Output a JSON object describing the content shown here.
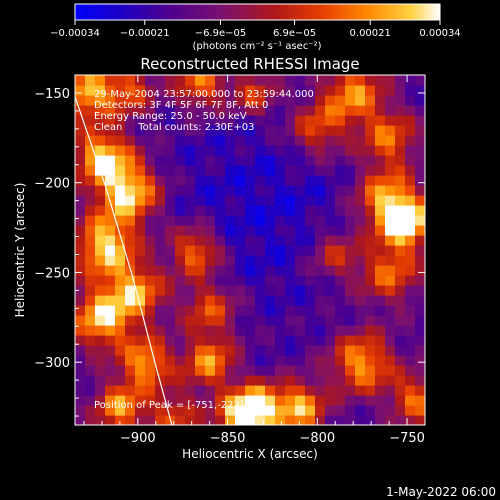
{
  "chart_data": {
    "type": "heatmap",
    "title": "Reconstructed RHESSI Image",
    "xlabel": "Heliocentric X (arcsec)",
    "ylabel": "Heliocentric Y (arcsec)",
    "xlim": [
      -935,
      -740
    ],
    "ylim": [
      -335,
      -140
    ],
    "x_ticks": [
      -900,
      -850,
      -800,
      -750
    ],
    "x_tick_labels": [
      "−900",
      "−850",
      "−800",
      "−750"
    ],
    "y_ticks": [
      -150,
      -200,
      -250,
      -300
    ],
    "y_tick_labels": [
      "−150",
      "−200",
      "−250",
      "−300"
    ],
    "colorbar": {
      "min": -0.00034,
      "max": 0.00034,
      "ticks": [
        -0.00034,
        -0.00021,
        -6.9e-05,
        6.9e-05,
        0.00021,
        0.00034
      ],
      "tick_labels": [
        "−0.00034",
        "−0.00021",
        "−6.9e−05",
        "6.9e−05",
        "0.00021",
        "0.00034"
      ],
      "units_label": "(photons cm⁻² s⁻¹ asec⁻²)",
      "colors": [
        "#0000ff",
        "#1a00c8",
        "#4a0090",
        "#7a1070",
        "#b01818",
        "#e84000",
        "#ff8800",
        "#ffd040",
        "#ffffff"
      ]
    },
    "annotations": [
      "29-May-2004 23:57:00.000 to 23:59:44.000",
      "Detectors: 3F 4F 5F 6F 7F 8F, Att 0",
      "Energy Range: 25.0 - 50.0 keV",
      "Clean     Total counts: 2.30E+03"
    ],
    "peak_label": "Position of Peak = [-751,-222]",
    "limb_curve": [
      [
        -935,
        -152
      ],
      [
        -918,
        -202
      ],
      [
        -903,
        -252
      ],
      [
        -890,
        -302
      ],
      [
        -881,
        -335
      ]
    ],
    "hotspots": [
      {
        "x": -751,
        "y": -222,
        "v": 1.0,
        "r": 10
      },
      {
        "x": -762,
        "y": -208,
        "v": 0.7,
        "r": 12
      },
      {
        "x": -760,
        "y": -250,
        "v": 0.6,
        "r": 12
      },
      {
        "x": -775,
        "y": -300,
        "v": 0.75,
        "r": 12
      },
      {
        "x": -780,
        "y": -150,
        "v": 0.7,
        "r": 12
      },
      {
        "x": -800,
        "y": -170,
        "v": 0.55,
        "r": 11
      },
      {
        "x": -810,
        "y": -325,
        "v": 0.8,
        "r": 10
      },
      {
        "x": -833,
        "y": -325,
        "v": 0.95,
        "r": 9
      },
      {
        "x": -845,
        "y": -330,
        "v": 0.7,
        "r": 9
      },
      {
        "x": -860,
        "y": -300,
        "v": 0.7,
        "r": 10
      },
      {
        "x": -860,
        "y": -270,
        "v": 0.55,
        "r": 11
      },
      {
        "x": -868,
        "y": -238,
        "v": 0.7,
        "r": 10
      },
      {
        "x": -905,
        "y": -205,
        "v": 0.9,
        "r": 12
      },
      {
        "x": -920,
        "y": -185,
        "v": 0.85,
        "r": 11
      },
      {
        "x": -918,
        "y": -235,
        "v": 0.9,
        "r": 12
      },
      {
        "x": -900,
        "y": -260,
        "v": 0.7,
        "r": 11
      },
      {
        "x": -920,
        "y": -275,
        "v": 0.85,
        "r": 12
      },
      {
        "x": -895,
        "y": -300,
        "v": 0.75,
        "r": 10
      },
      {
        "x": -910,
        "y": -325,
        "v": 0.7,
        "r": 10
      },
      {
        "x": -880,
        "y": -330,
        "v": 0.5,
        "r": 10
      },
      {
        "x": -928,
        "y": -150,
        "v": 0.8,
        "r": 10
      },
      {
        "x": -905,
        "y": -148,
        "v": 0.55,
        "r": 10
      },
      {
        "x": -865,
        "y": -145,
        "v": 0.65,
        "r": 10
      },
      {
        "x": -835,
        "y": -150,
        "v": 0.5,
        "r": 9
      },
      {
        "x": -790,
        "y": -240,
        "v": 0.45,
        "r": 10
      },
      {
        "x": -760,
        "y": -175,
        "v": 0.6,
        "r": 11
      },
      {
        "x": -745,
        "y": -320,
        "v": 0.6,
        "r": 10
      }
    ]
  },
  "footer": {
    "timestamp": "1-May-2022 06:00"
  }
}
